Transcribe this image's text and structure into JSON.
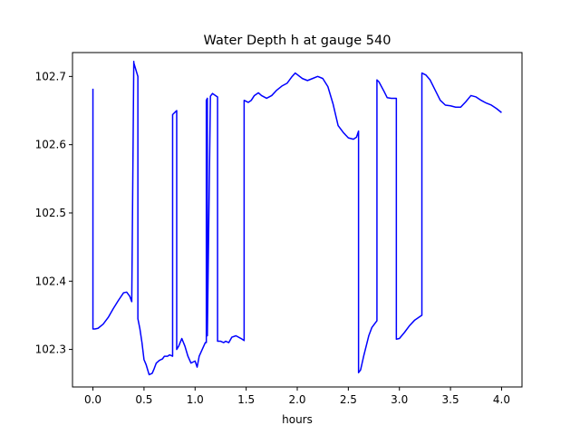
{
  "chart_data": {
    "type": "line",
    "title": "Water Depth h at gauge 540",
    "xlabel": "hours",
    "ylabel": "",
    "xlim": [
      -0.2,
      4.2
    ],
    "ylim": [
      102.245,
      102.735
    ],
    "xticks": [
      0.0,
      0.5,
      1.0,
      1.5,
      2.0,
      2.5,
      3.0,
      3.5,
      4.0
    ],
    "xtick_labels": [
      "0.0",
      "0.5",
      "1.0",
      "1.5",
      "2.0",
      "2.5",
      "3.0",
      "3.5",
      "4.0"
    ],
    "yticks": [
      102.3,
      102.4,
      102.5,
      102.6,
      102.7
    ],
    "ytick_labels": [
      "102.3",
      "102.4",
      "102.5",
      "102.6",
      "102.7"
    ],
    "grid": false,
    "legend": "none",
    "series": [
      {
        "color": "#0000ff",
        "x": [
          0.0,
          0.0,
          0.02,
          0.05,
          0.1,
          0.15,
          0.2,
          0.25,
          0.3,
          0.33,
          0.36,
          0.38,
          0.4,
          0.4,
          0.44,
          0.44,
          0.46,
          0.48,
          0.5,
          0.52,
          0.55,
          0.58,
          0.6,
          0.62,
          0.65,
          0.68,
          0.7,
          0.73,
          0.75,
          0.78,
          0.78,
          0.82,
          0.82,
          0.84,
          0.87,
          0.9,
          0.93,
          0.96,
          1.0,
          1.02,
          1.04,
          1.07,
          1.1,
          1.11,
          1.11,
          1.12,
          1.12,
          1.15,
          1.17,
          1.2,
          1.22,
          1.22,
          1.25,
          1.28,
          1.3,
          1.33,
          1.36,
          1.4,
          1.45,
          1.48,
          1.48,
          1.52,
          1.55,
          1.58,
          1.62,
          1.65,
          1.7,
          1.75,
          1.8,
          1.85,
          1.9,
          1.95,
          1.98,
          2.05,
          2.1,
          2.15,
          2.2,
          2.25,
          2.3,
          2.35,
          2.4,
          2.45,
          2.5,
          2.55,
          2.58,
          2.6,
          2.6,
          2.62,
          2.65,
          2.7,
          2.73,
          2.76,
          2.78,
          2.78,
          2.8,
          2.85,
          2.88,
          2.92,
          2.97,
          2.97,
          3.0,
          3.05,
          3.1,
          3.15,
          3.2,
          3.22,
          3.22,
          3.26,
          3.3,
          3.35,
          3.4,
          3.45,
          3.5,
          3.55,
          3.6,
          3.65,
          3.7,
          3.75,
          3.8,
          3.85,
          3.9,
          3.95,
          4.0
        ],
        "y": [
          102.682,
          102.33,
          102.33,
          102.331,
          102.337,
          102.347,
          102.36,
          102.372,
          102.383,
          102.384,
          102.378,
          102.37,
          102.722,
          102.72,
          102.7,
          102.345,
          102.33,
          102.31,
          102.285,
          102.278,
          102.263,
          102.265,
          102.272,
          102.28,
          102.284,
          102.286,
          102.29,
          102.29,
          102.292,
          102.29,
          102.644,
          102.65,
          102.3,
          102.305,
          102.316,
          102.305,
          102.29,
          102.28,
          102.283,
          102.274,
          102.29,
          102.3,
          102.31,
          102.31,
          102.665,
          102.668,
          102.32,
          102.671,
          102.675,
          102.672,
          102.67,
          102.312,
          102.312,
          102.31,
          102.312,
          102.31,
          102.318,
          102.32,
          102.316,
          102.313,
          102.665,
          102.662,
          102.665,
          102.672,
          102.676,
          102.672,
          102.668,
          102.672,
          102.68,
          102.686,
          102.69,
          102.7,
          102.705,
          102.697,
          102.694,
          102.697,
          102.7,
          102.697,
          102.685,
          102.66,
          102.628,
          102.618,
          102.61,
          102.608,
          102.611,
          102.62,
          102.266,
          102.27,
          102.29,
          102.32,
          102.332,
          102.338,
          102.342,
          102.695,
          102.692,
          102.678,
          102.669,
          102.668,
          102.668,
          102.315,
          102.316,
          102.325,
          102.335,
          102.343,
          102.348,
          102.35,
          102.705,
          102.702,
          102.695,
          102.68,
          102.665,
          102.658,
          102.657,
          102.655,
          102.655,
          102.663,
          102.672,
          102.67,
          102.665,
          102.661,
          102.658,
          102.653,
          102.647
        ]
      }
    ]
  }
}
